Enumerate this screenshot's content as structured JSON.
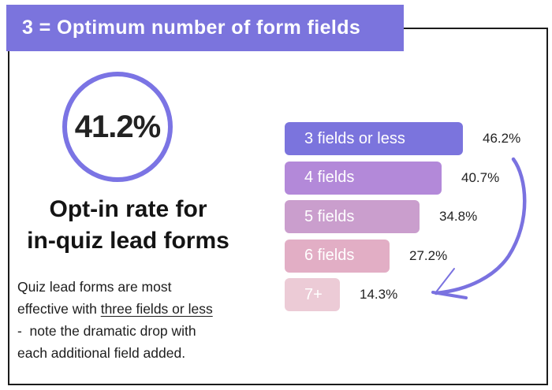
{
  "banner": {
    "title": "3 = Optimum number of form fields"
  },
  "stat": {
    "value": "41.2%",
    "heading_line1": "Opt-in rate for",
    "heading_line2": "in-quiz lead forms"
  },
  "paragraph": {
    "line1": "Quiz lead forms are most",
    "line2_pre": "effective with ",
    "line2_underlined": "three fields or less",
    "line3": "-  note the dramatic drop with",
    "line4": "each additional field added."
  },
  "chart_data": {
    "type": "bar",
    "orientation": "horizontal",
    "title": "",
    "xlabel": "",
    "ylabel": "",
    "categories": [
      "3 fields or less",
      "4 fields",
      "5 fields",
      "6 fields",
      "7+"
    ],
    "values": [
      46.2,
      40.7,
      34.8,
      27.2,
      14.3
    ],
    "value_labels": [
      "46.2%",
      "40.7%",
      "34.8%",
      "27.2%",
      "14.3%"
    ],
    "bar_colors": [
      "#7b74dd",
      "#b389d9",
      "#ca9ecd",
      "#e2aec5",
      "#eccbd6"
    ],
    "xlim": [
      0,
      50
    ],
    "grid": false,
    "legend": "none"
  },
  "colors": {
    "banner_bg": "#7b74dd",
    "banner_text": "#ffffff",
    "circle_stroke": "#7b74e4",
    "card_border": "#1b1b1b",
    "text_dark": "#1d1d1d",
    "arrow": "#7a72e0"
  }
}
